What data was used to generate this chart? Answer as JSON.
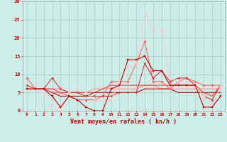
{
  "background_color": "#cceee8",
  "grid_color": "#aacccc",
  "xlabel": "Vent moyen/en rafales ( kn/h )",
  "xlabel_color": "#cc0000",
  "tick_color": "#cc0000",
  "xlim": [
    -0.5,
    23.5
  ],
  "ylim": [
    0,
    30
  ],
  "yticks": [
    0,
    5,
    10,
    15,
    20,
    25,
    30
  ],
  "xticks": [
    0,
    1,
    2,
    3,
    4,
    5,
    6,
    7,
    8,
    9,
    10,
    11,
    12,
    13,
    14,
    15,
    16,
    17,
    18,
    19,
    20,
    21,
    22,
    23
  ],
  "series": [
    {
      "x": [
        0,
        1,
        2,
        3,
        4,
        5,
        6,
        7,
        8,
        9,
        10,
        11,
        12,
        13,
        14,
        15,
        16,
        17,
        18,
        19,
        20,
        21,
        22,
        23
      ],
      "y": [
        6,
        6,
        6,
        4,
        1,
        4,
        3,
        1,
        0,
        0,
        6,
        7,
        14,
        14,
        15,
        11,
        11,
        7,
        7,
        7,
        7,
        1,
        1,
        4
      ],
      "color": "#cc0000",
      "lw": 0.8,
      "marker": "s",
      "ms": 1.8,
      "zorder": 5
    },
    {
      "x": [
        0,
        1,
        2,
        3,
        4,
        5,
        6,
        7,
        8,
        9,
        10,
        11,
        12,
        13,
        14,
        15,
        16,
        17,
        18,
        19,
        20,
        21,
        22,
        23
      ],
      "y": [
        9,
        6,
        6,
        5,
        5,
        4,
        3,
        3,
        3,
        4,
        8,
        8,
        8,
        13,
        19,
        8,
        8,
        6,
        8,
        9,
        8,
        7,
        7,
        7
      ],
      "color": "#ff6666",
      "lw": 0.8,
      "marker": "D",
      "ms": 1.8,
      "zorder": 4
    },
    {
      "x": [
        0,
        1,
        2,
        3,
        4,
        5,
        6,
        7,
        8,
        9,
        10,
        11,
        12,
        13,
        14,
        15,
        16,
        17,
        18,
        19,
        20,
        21,
        22,
        23
      ],
      "y": [
        6,
        6,
        6,
        6,
        6,
        5,
        5,
        5,
        6,
        6,
        6,
        6,
        6,
        6,
        7,
        7,
        6,
        6,
        6,
        6,
        6,
        6,
        6,
        6
      ],
      "color": "#ffaaaa",
      "lw": 1.2,
      "marker": null,
      "ms": 0,
      "zorder": 3
    },
    {
      "x": [
        0,
        1,
        2,
        3,
        4,
        5,
        6,
        7,
        8,
        9,
        10,
        11,
        12,
        13,
        14,
        15,
        16,
        17,
        18,
        19,
        20,
        21,
        22,
        23
      ],
      "y": [
        6,
        6,
        6,
        5,
        4,
        4,
        4,
        4,
        5,
        5,
        5,
        5,
        5,
        5,
        6,
        6,
        6,
        6,
        5,
        5,
        5,
        5,
        5,
        5
      ],
      "color": "#cc0000",
      "lw": 0.8,
      "marker": null,
      "ms": 0,
      "zorder": 3
    },
    {
      "x": [
        0,
        1,
        2,
        3,
        4,
        5,
        6,
        7,
        8,
        9,
        10,
        11,
        12,
        13,
        14,
        15,
        16,
        17,
        18,
        19,
        20,
        21,
        22,
        23
      ],
      "y": [
        6,
        6,
        6,
        6,
        5,
        5,
        5,
        5,
        5,
        6,
        7,
        7,
        7,
        7,
        7,
        7,
        7,
        7,
        7,
        7,
        7,
        5,
        4,
        7
      ],
      "color": "#ee4444",
      "lw": 0.8,
      "marker": null,
      "ms": 0,
      "zorder": 3
    },
    {
      "x": [
        0,
        1,
        2,
        3,
        4,
        5,
        6,
        7,
        8,
        9,
        10,
        11,
        12,
        13,
        14,
        15,
        16,
        17,
        18,
        19,
        20,
        21,
        22,
        23
      ],
      "y": [
        7,
        6,
        6,
        9,
        6,
        5,
        5,
        4,
        4,
        4,
        4,
        5,
        5,
        5,
        13,
        9,
        11,
        8,
        9,
        9,
        7,
        4,
        3,
        7
      ],
      "color": "#dd3333",
      "lw": 0.8,
      "marker": "D",
      "ms": 1.5,
      "zorder": 4
    },
    {
      "x": [
        0,
        1,
        2,
        3,
        4,
        5,
        6,
        7,
        8,
        9,
        10,
        11,
        12,
        13,
        14,
        15,
        16,
        17,
        18,
        19,
        20,
        21,
        22,
        23
      ],
      "y": [
        6,
        6,
        5,
        1,
        0,
        5,
        6,
        5,
        3,
        3,
        3,
        8,
        12,
        13,
        27,
        22,
        22,
        9,
        8,
        8,
        7,
        4,
        1,
        7
      ],
      "color": "#ffcccc",
      "lw": 0.8,
      "marker": "D",
      "ms": 1.8,
      "zorder": 4
    }
  ]
}
